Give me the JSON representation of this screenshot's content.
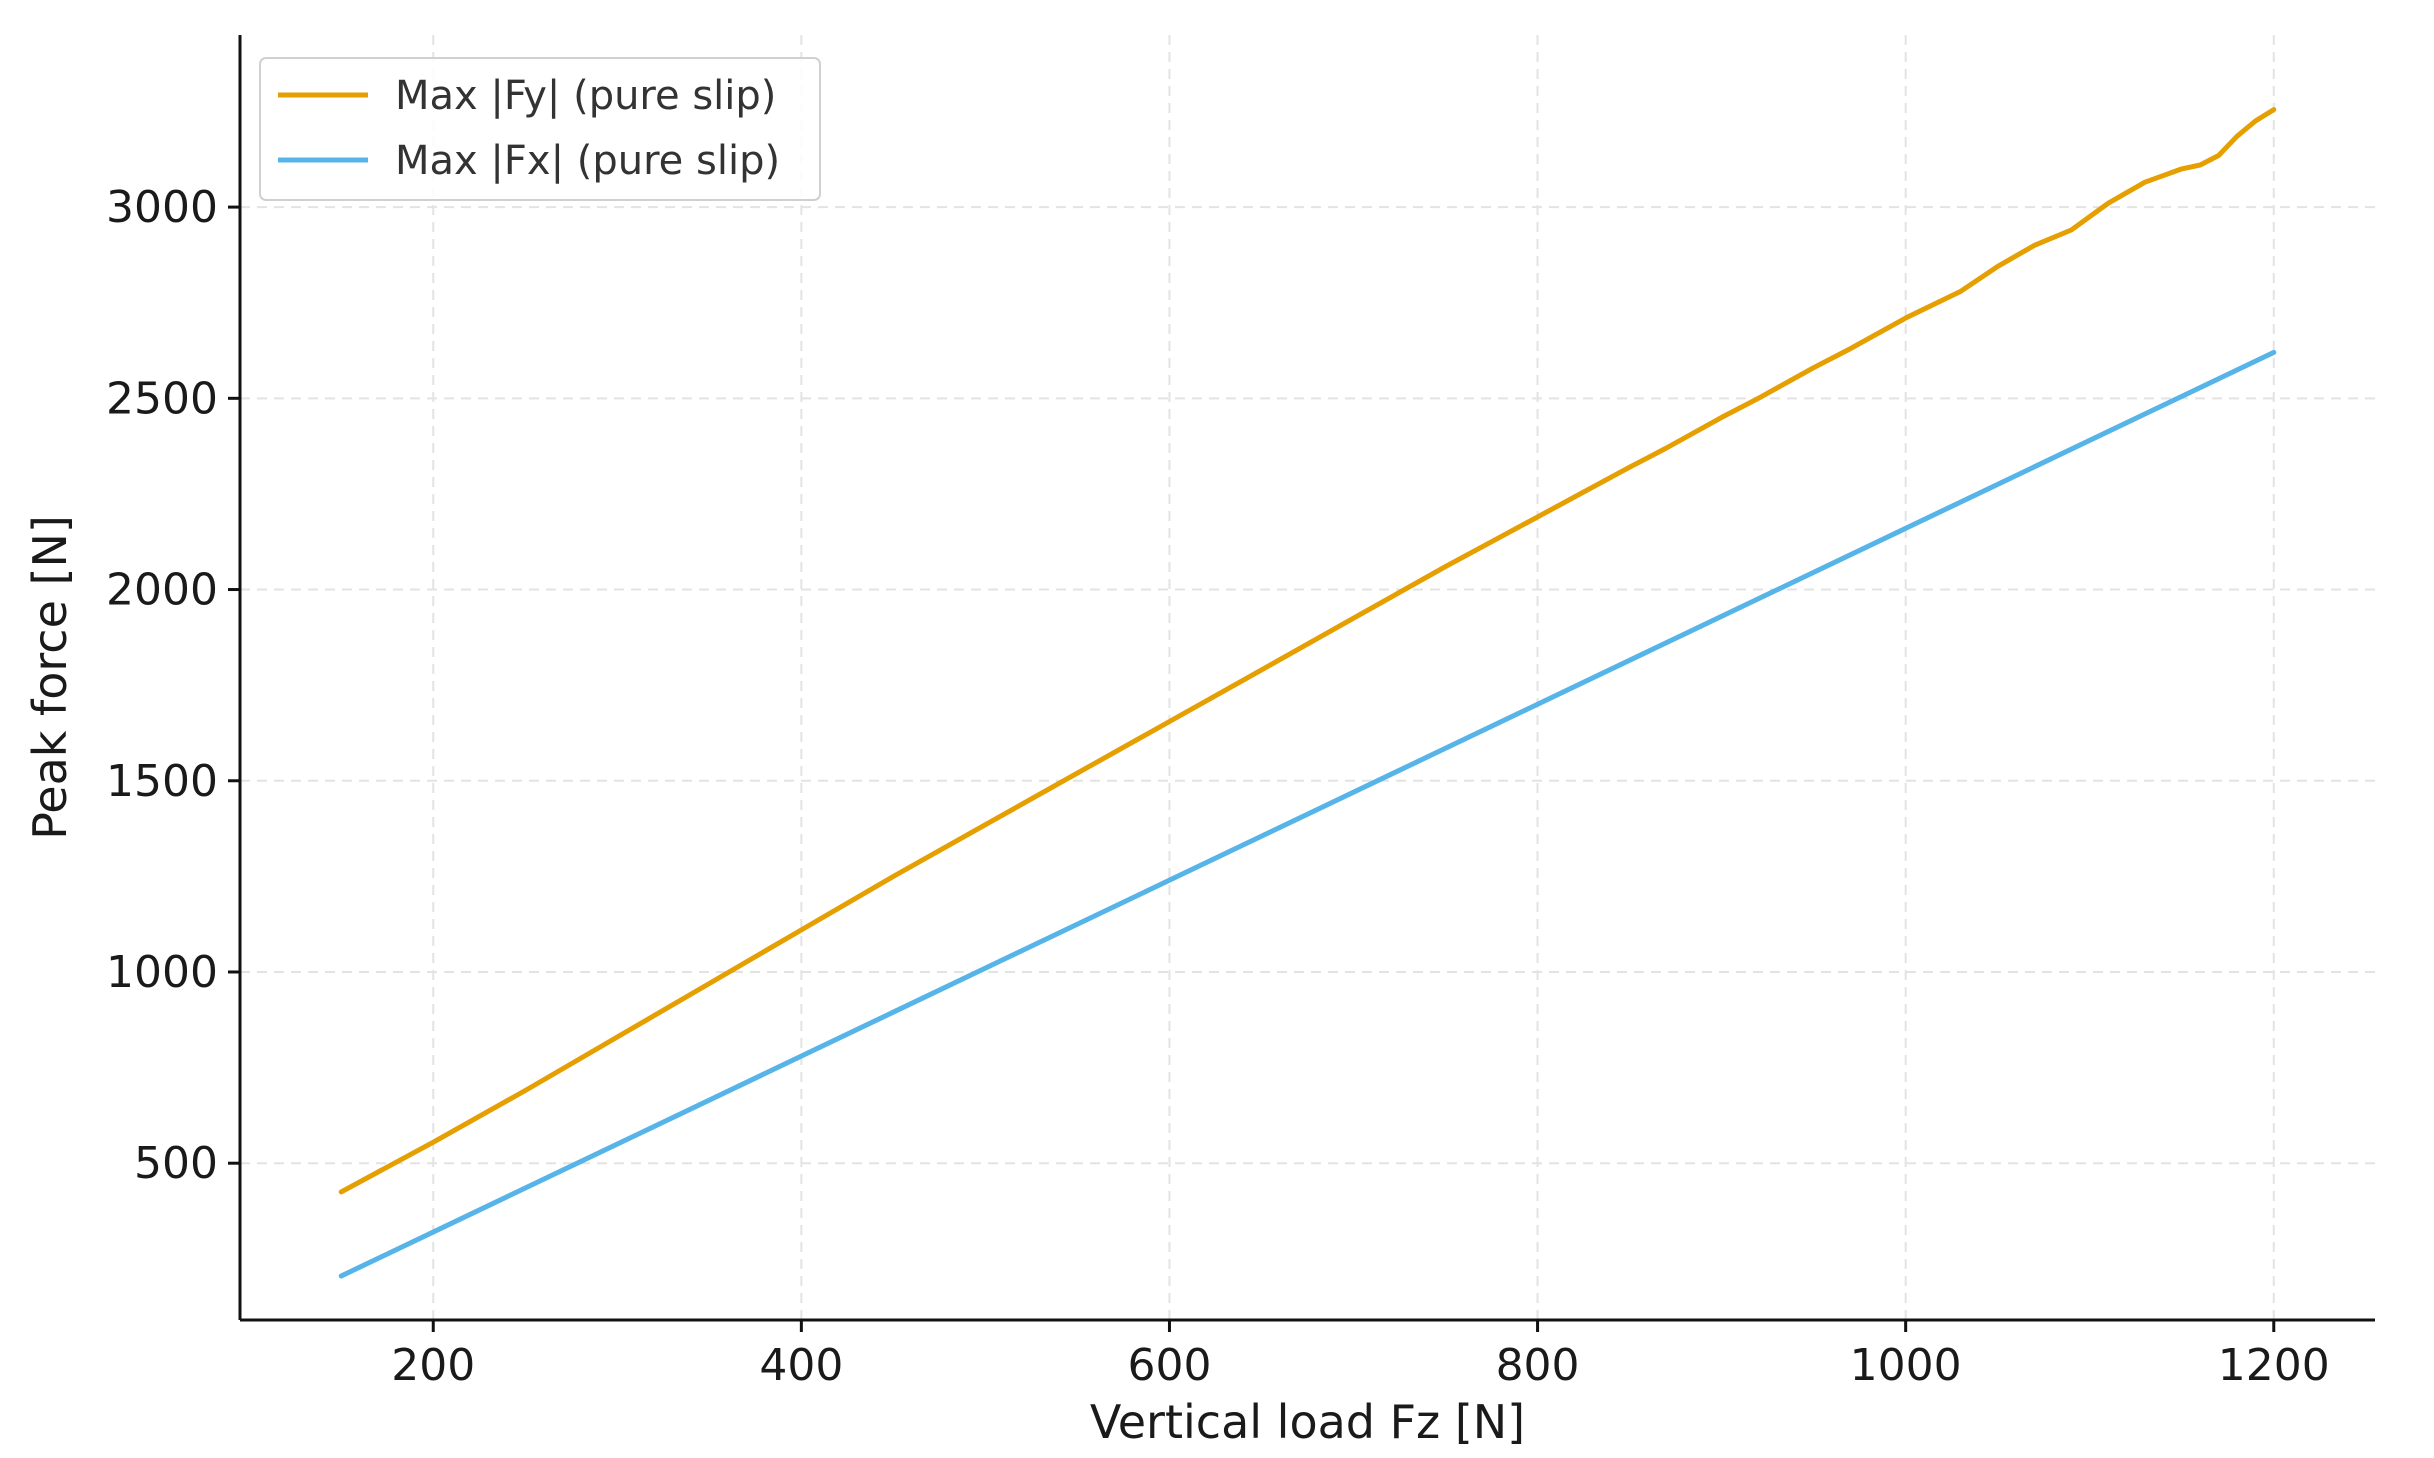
{
  "chart_data": {
    "type": "line",
    "xlabel": "Vertical load Fz [N]",
    "ylabel": "Peak force [N]",
    "xlim": [
      95,
      1255
    ],
    "ylim": [
      90,
      3450
    ],
    "xticks": [
      200,
      400,
      600,
      800,
      1000,
      1200
    ],
    "yticks": [
      500,
      1000,
      1500,
      2000,
      2500,
      3000
    ],
    "xtick_labels": [
      "200",
      "400",
      "600",
      "800",
      "1000",
      "1200"
    ],
    "ytick_labels": [
      "500",
      "1000",
      "1500",
      "2000",
      "2500",
      "3000"
    ],
    "grid": true,
    "legend_position": "top-left",
    "series": [
      {
        "name": "Max |Fy| (pure slip)",
        "color": "#E69F00",
        "x": [
          150,
          200,
          250,
          300,
          350,
          400,
          450,
          500,
          550,
          600,
          650,
          700,
          750,
          800,
          850,
          870,
          900,
          920,
          950,
          970,
          1000,
          1030,
          1050,
          1070,
          1090,
          1110,
          1130,
          1150,
          1160,
          1170,
          1180,
          1190,
          1200
        ],
        "values": [
          425,
          555,
          690,
          830,
          970,
          1110,
          1250,
          1385,
          1520,
          1655,
          1790,
          1925,
          2060,
          2190,
          2320,
          2370,
          2450,
          2500,
          2580,
          2630,
          2710,
          2780,
          2845,
          2900,
          2940,
          3010,
          3065,
          3100,
          3110,
          3135,
          3185,
          3225,
          3255
        ]
      },
      {
        "name": "Max |Fx| (pure slip)",
        "color": "#56B4E9",
        "x": [
          150,
          1200
        ],
        "values": [
          205,
          2620
        ]
      }
    ]
  }
}
